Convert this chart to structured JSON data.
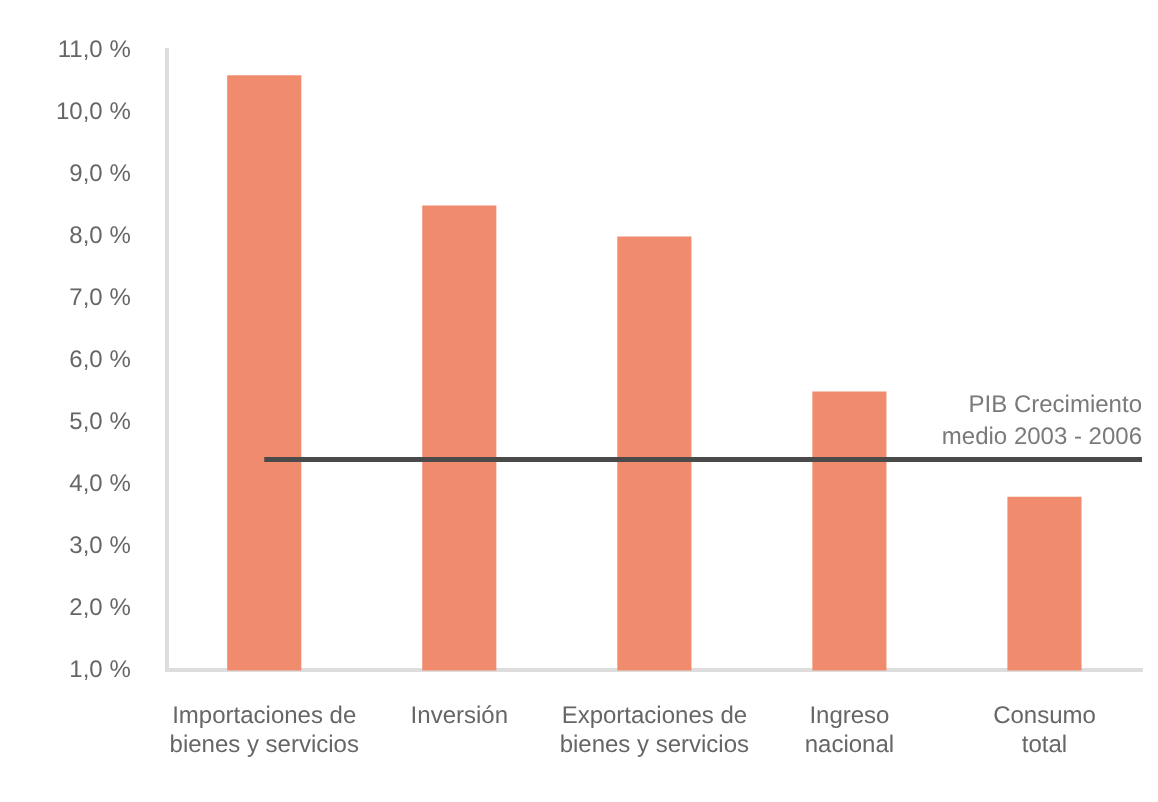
{
  "chart_data": {
    "type": "bar",
    "categories": [
      "Importaciones de\nbienes y servicios",
      "Inversión",
      "Exportaciones de\nbienes y servicios",
      "Ingreso\nnacional",
      "Consumo\ntotal"
    ],
    "values": [
      10.6,
      8.5,
      8.0,
      5.5,
      3.8
    ],
    "color": "#f08b6e",
    "ylim": [
      1,
      11
    ],
    "yticks": [
      {
        "value": 1,
        "label": "1,0 %"
      },
      {
        "value": 2,
        "label": "2,0 %"
      },
      {
        "value": 3,
        "label": "3,0 %"
      },
      {
        "value": 4,
        "label": "4,0 %"
      },
      {
        "value": 5,
        "label": "5,0 %"
      },
      {
        "value": 6,
        "label": "6,0 %"
      },
      {
        "value": 7,
        "label": "7,0 %"
      },
      {
        "value": 8,
        "label": "8,0 %"
      },
      {
        "value": 9,
        "label": "9,0 %"
      },
      {
        "value": 10,
        "label": "10,0 %"
      },
      {
        "value": 11,
        "label": "11,0 %"
      }
    ],
    "grid": false,
    "legend": false,
    "ref_lines": [
      {
        "axis": "y",
        "value": 4.4,
        "label": "PIB Crecimiento\nmedio 2003 - 2006",
        "color": "#4a4a4a"
      }
    ]
  }
}
